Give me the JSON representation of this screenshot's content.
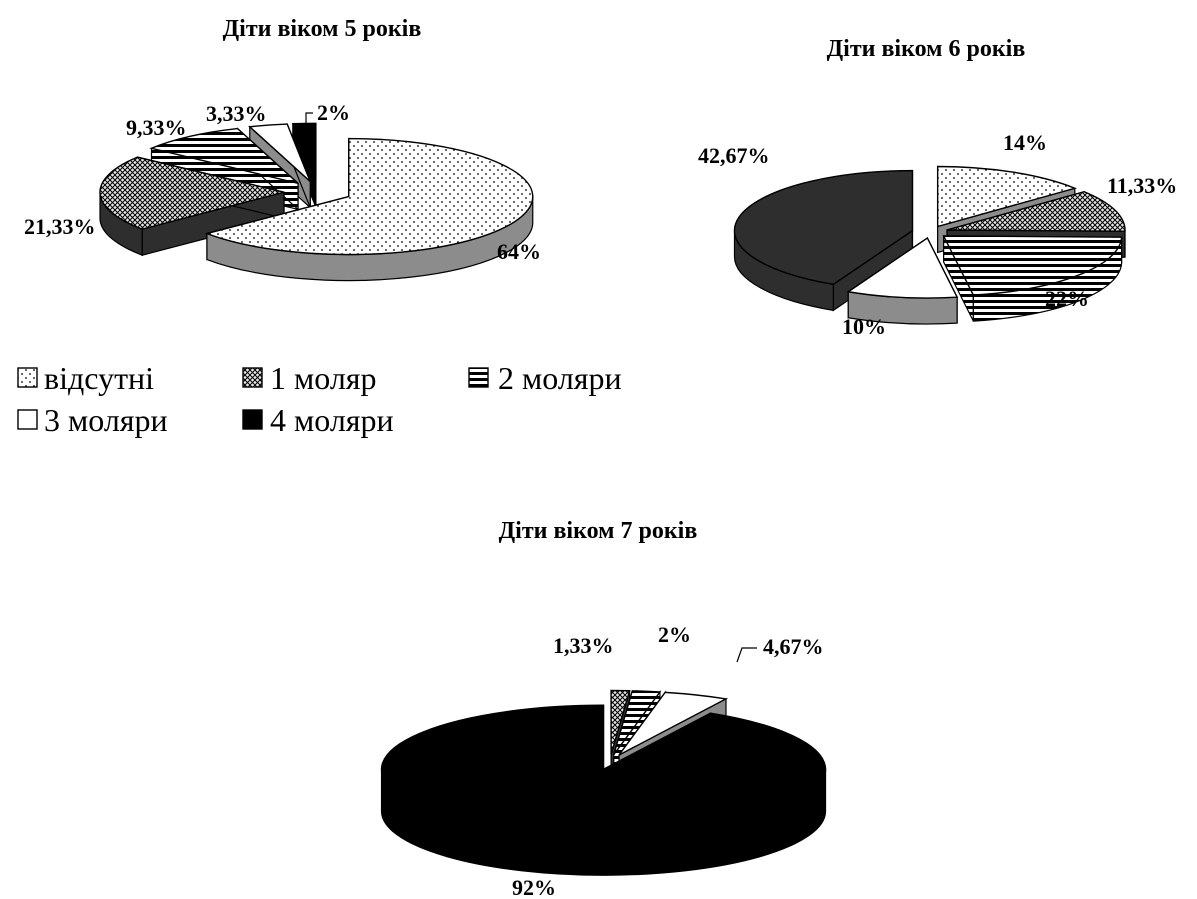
{
  "legend": [
    {
      "label": "відсутні",
      "pattern": "dots"
    },
    {
      "label": "1 моляр",
      "pattern": "cross"
    },
    {
      "label": "2 моляри",
      "pattern": "hlines"
    },
    {
      "label": "3 моляри",
      "pattern": "white"
    },
    {
      "label": "4 моляри",
      "pattern": "black"
    }
  ],
  "colors": {
    "black": "#000000",
    "dark": "#2e2e2e",
    "gray": "#8c8c8c",
    "white": "#ffffff"
  },
  "chart_data": [
    {
      "type": "pie",
      "title": "Діти віком 5 років",
      "categories": [
        "відсутні",
        "1 моляр",
        "2 моляри",
        "3 моляри",
        "4 моляри"
      ],
      "values": [
        64,
        21.33,
        9.33,
        3.33,
        2
      ],
      "labels": [
        "64%",
        "21,33%",
        "9,33%",
        "3,33%",
        "2%"
      ],
      "patterns": [
        "dots",
        "cross",
        "hlines",
        "white",
        "black"
      ]
    },
    {
      "type": "pie",
      "title": "Діти віком 6 років",
      "categories": [
        "відсутні",
        "1 моляр",
        "2 моляри",
        "3 моляри",
        "4 моляри"
      ],
      "values": [
        14,
        11.33,
        22,
        10,
        42.67
      ],
      "labels": [
        "14%",
        "11,33%",
        "22%",
        "10%",
        "42,67%"
      ],
      "patterns": [
        "dots",
        "cross",
        "hlines",
        "white",
        "dark"
      ]
    },
    {
      "type": "pie",
      "title": "Діти віком 7 років",
      "categories": [
        "1 моляр",
        "2 моляри",
        "3 моляри",
        "4 моляри"
      ],
      "values": [
        1.33,
        2,
        4.67,
        92
      ],
      "labels": [
        "1,33%",
        "2%",
        "4,67%",
        "92%"
      ],
      "patterns": [
        "cross",
        "hlines",
        "white",
        "black"
      ]
    }
  ]
}
